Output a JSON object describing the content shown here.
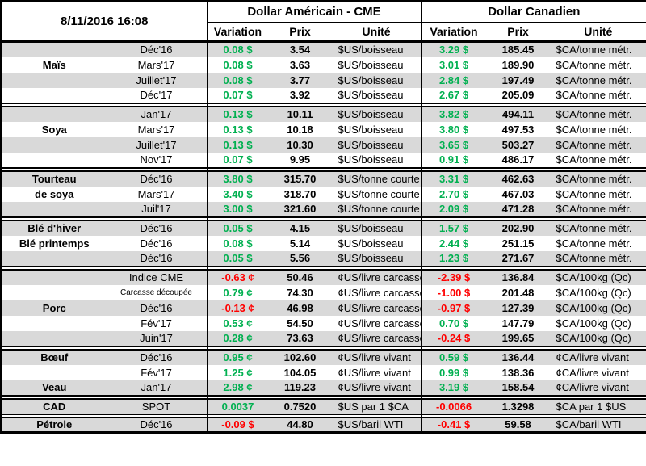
{
  "header": {
    "timestamp": "8/11/2016 16:08",
    "usd_title": "Dollar Américain - CME",
    "cad_title": "Dollar Canadien",
    "columns": {
      "variation": "Variation",
      "prix": "Prix",
      "unite": "Unité"
    }
  },
  "colors": {
    "positive": "#00B050",
    "negative": "#FF0000",
    "row_shade": "#D9D9D9",
    "border": "#000000"
  },
  "chart_data": {
    "type": "table",
    "groups": [
      {
        "commodity": "Maïs",
        "rows": [
          {
            "label": "",
            "month": "Déc'16",
            "us_var": "0.08 $",
            "us_dir": "pos",
            "us_prix": "3.54",
            "us_unite": "$US/boisseau",
            "ca_var": "3.29 $",
            "ca_dir": "pos",
            "ca_prix": "185.45",
            "ca_unite": "$CA/tonne métr."
          },
          {
            "label": "Maïs",
            "month": "Mars'17",
            "us_var": "0.08 $",
            "us_dir": "pos",
            "us_prix": "3.63",
            "us_unite": "$US/boisseau",
            "ca_var": "3.01 $",
            "ca_dir": "pos",
            "ca_prix": "189.90",
            "ca_unite": "$CA/tonne métr."
          },
          {
            "label": "",
            "month": "Juillet'17",
            "us_var": "0.08 $",
            "us_dir": "pos",
            "us_prix": "3.77",
            "us_unite": "$US/boisseau",
            "ca_var": "2.84 $",
            "ca_dir": "pos",
            "ca_prix": "197.49",
            "ca_unite": "$CA/tonne métr."
          },
          {
            "label": "",
            "month": "Déc'17",
            "us_var": "0.07 $",
            "us_dir": "pos",
            "us_prix": "3.92",
            "us_unite": "$US/boisseau",
            "ca_var": "2.67 $",
            "ca_dir": "pos",
            "ca_prix": "205.09",
            "ca_unite": "$CA/tonne métr."
          }
        ]
      },
      {
        "commodity": "Soya",
        "rows": [
          {
            "label": "",
            "month": "Jan'17",
            "us_var": "0.13 $",
            "us_dir": "pos",
            "us_prix": "10.11",
            "us_unite": "$US/boisseau",
            "ca_var": "3.82 $",
            "ca_dir": "pos",
            "ca_prix": "494.11",
            "ca_unite": "$CA/tonne métr."
          },
          {
            "label": "Soya",
            "month": "Mars'17",
            "us_var": "0.13 $",
            "us_dir": "pos",
            "us_prix": "10.18",
            "us_unite": "$US/boisseau",
            "ca_var": "3.80 $",
            "ca_dir": "pos",
            "ca_prix": "497.53",
            "ca_unite": "$CA/tonne métr."
          },
          {
            "label": "",
            "month": "Juillet'17",
            "us_var": "0.13 $",
            "us_dir": "pos",
            "us_prix": "10.30",
            "us_unite": "$US/boisseau",
            "ca_var": "3.65 $",
            "ca_dir": "pos",
            "ca_prix": "503.27",
            "ca_unite": "$CA/tonne métr."
          },
          {
            "label": "",
            "month": "Nov'17",
            "us_var": "0.07 $",
            "us_dir": "pos",
            "us_prix": "9.95",
            "us_unite": "$US/boisseau",
            "ca_var": "0.91 $",
            "ca_dir": "pos",
            "ca_prix": "486.17",
            "ca_unite": "$CA/tonne métr."
          }
        ]
      },
      {
        "commodity": "Tourteau de soya",
        "rows": [
          {
            "label": "Tourteau",
            "month": "Déc'16",
            "us_var": "3.80 $",
            "us_dir": "pos",
            "us_prix": "315.70",
            "us_unite": "$US/tonne courte",
            "ca_var": "3.31 $",
            "ca_dir": "pos",
            "ca_prix": "462.63",
            "ca_unite": "$CA/tonne métr."
          },
          {
            "label": "de soya",
            "month": "Mars'17",
            "us_var": "3.40 $",
            "us_dir": "pos",
            "us_prix": "318.70",
            "us_unite": "$US/tonne courte",
            "ca_var": "2.70 $",
            "ca_dir": "pos",
            "ca_prix": "467.03",
            "ca_unite": "$CA/tonne métr."
          },
          {
            "label": "",
            "month": "Juil'17",
            "us_var": "3.00 $",
            "us_dir": "pos",
            "us_prix": "321.60",
            "us_unite": "$US/tonne courte",
            "ca_var": "2.09 $",
            "ca_dir": "pos",
            "ca_prix": "471.28",
            "ca_unite": "$CA/tonne métr."
          }
        ]
      },
      {
        "commodity": "Blé d'hiver / Blé printemps",
        "rows": [
          {
            "label": "Blé d'hiver",
            "month": "Déc'16",
            "us_var": "0.05 $",
            "us_dir": "pos",
            "us_prix": "4.15",
            "us_unite": "$US/boisseau",
            "ca_var": "1.57 $",
            "ca_dir": "pos",
            "ca_prix": "202.90",
            "ca_unite": "$CA/tonne métr."
          },
          {
            "label": "Blé printemps",
            "month": "Déc'16",
            "us_var": "0.08 $",
            "us_dir": "pos",
            "us_prix": "5.14",
            "us_unite": "$US/boisseau",
            "ca_var": "2.44 $",
            "ca_dir": "pos",
            "ca_prix": "251.15",
            "ca_unite": "$CA/tonne métr."
          },
          {
            "label": "",
            "month": "Déc'16",
            "us_var": "0.05 $",
            "us_dir": "pos",
            "us_prix": "5.56",
            "us_unite": "$US/boisseau",
            "ca_var": "1.23 $",
            "ca_dir": "pos",
            "ca_prix": "271.67",
            "ca_unite": "$CA/tonne métr."
          }
        ]
      },
      {
        "commodity": "Porc",
        "rows": [
          {
            "label": "",
            "month": "Indice CME",
            "us_var": "-0.63 ¢",
            "us_dir": "neg",
            "us_prix": "50.46",
            "us_unite": "¢US/livre carcasse",
            "ca_var": "-2.39 $",
            "ca_dir": "neg",
            "ca_prix": "136.84",
            "ca_unite": "$CA/100kg (Qc)"
          },
          {
            "label": "",
            "month": "Carcasse découpée",
            "small": true,
            "us_var": "0.79 ¢",
            "us_dir": "pos",
            "us_prix": "74.30",
            "us_unite": "¢US/livre carcasse",
            "ca_var": "-1.00 $",
            "ca_dir": "neg",
            "ca_prix": "201.48",
            "ca_unite": "$CA/100kg (Qc)"
          },
          {
            "label": "Porc",
            "month": "Déc'16",
            "us_var": "-0.13 ¢",
            "us_dir": "neg",
            "us_prix": "46.98",
            "us_unite": "¢US/livre carcasse",
            "ca_var": "-0.97 $",
            "ca_dir": "neg",
            "ca_prix": "127.39",
            "ca_unite": "$CA/100kg (Qc)"
          },
          {
            "label": "",
            "month": "Fév'17",
            "us_var": "0.53 ¢",
            "us_dir": "pos",
            "us_prix": "54.50",
            "us_unite": "¢US/livre carcasse",
            "ca_var": "0.70 $",
            "ca_dir": "pos",
            "ca_prix": "147.79",
            "ca_unite": "$CA/100kg (Qc)"
          },
          {
            "label": "",
            "month": "Juin'17",
            "us_var": "0.28 ¢",
            "us_dir": "pos",
            "us_prix": "73.63",
            "us_unite": "¢US/livre carcasse",
            "ca_var": "-0.24 $",
            "ca_dir": "neg",
            "ca_prix": "199.65",
            "ca_unite": "$CA/100kg (Qc)"
          }
        ]
      },
      {
        "commodity": "Bœuf / Veau",
        "rows": [
          {
            "label": "Bœuf",
            "month": "Déc'16",
            "us_var": "0.95 ¢",
            "us_dir": "pos",
            "us_prix": "102.60",
            "us_unite": "¢US/livre vivant",
            "ca_var": "0.59 $",
            "ca_dir": "pos",
            "ca_prix": "136.44",
            "ca_unite": "¢CA/livre vivant"
          },
          {
            "label": "",
            "month": "Fév'17",
            "us_var": "1.25 ¢",
            "us_dir": "pos",
            "us_prix": "104.05",
            "us_unite": "¢US/livre vivant",
            "ca_var": "0.99 $",
            "ca_dir": "pos",
            "ca_prix": "138.36",
            "ca_unite": "¢CA/livre vivant"
          },
          {
            "label": "Veau",
            "month": "Jan'17",
            "us_var": "2.98 ¢",
            "us_dir": "pos",
            "us_prix": "119.23",
            "us_unite": "¢US/livre vivant",
            "ca_var": "3.19 $",
            "ca_dir": "pos",
            "ca_prix": "158.54",
            "ca_unite": "¢CA/livre vivant"
          }
        ]
      },
      {
        "commodity": "CAD",
        "rows": [
          {
            "label": "CAD",
            "month": "SPOT",
            "us_var": "0.0037",
            "us_dir": "pos",
            "us_prix": "0.7520",
            "us_unite": "$US par 1 $CA",
            "ca_var": "-0.0066",
            "ca_dir": "neg",
            "ca_prix": "1.3298",
            "ca_unite": "$CA par 1 $US"
          }
        ]
      },
      {
        "commodity": "Pétrole",
        "rows": [
          {
            "label": "Pétrole",
            "month": "Déc'16",
            "us_var": "-0.09 $",
            "us_dir": "neg",
            "us_prix": "44.80",
            "us_unite": "$US/baril WTI",
            "ca_var": "-0.41 $",
            "ca_dir": "neg",
            "ca_prix": "59.58",
            "ca_unite": "$CA/baril WTI"
          }
        ]
      }
    ]
  }
}
